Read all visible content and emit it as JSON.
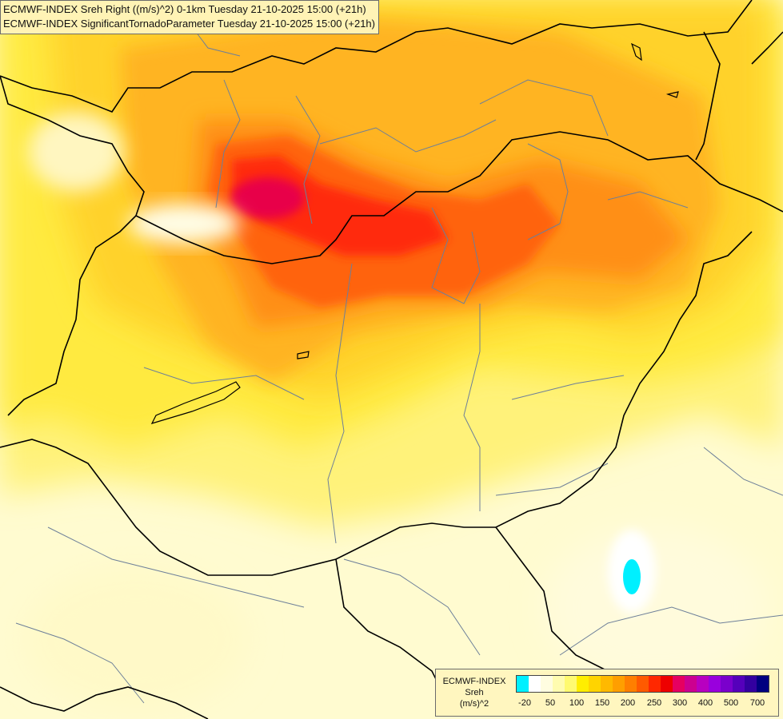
{
  "header": {
    "line1": "ECMWF-INDEX Sreh Right ((m/s)^2) 0-1km Tuesday 21-10-2025 15:00 (+21h)",
    "line2": "ECMWF-INDEX SignificantTornadoParameter Tuesday 21-10-2025 15:00 (+21h)"
  },
  "legend": {
    "line1": "ECMWF-INDEX",
    "line2": "Sreh",
    "line3": "(m/s)^2",
    "colors": [
      "#00f0ff",
      "#ffffff",
      "#fffde0",
      "#fffcb0",
      "#fffa70",
      "#ffee00",
      "#ffd400",
      "#ffb900",
      "#ff9f00",
      "#ff7f00",
      "#ff5a00",
      "#ff2800",
      "#ee0000",
      "#e60060",
      "#cc0090",
      "#b800c0",
      "#9900dd",
      "#7a00cc",
      "#5500bb",
      "#3300a0",
      "#000080"
    ],
    "ticks": [
      "-20",
      "50",
      "100",
      "150",
      "200",
      "250",
      "300",
      "400",
      "500",
      "700"
    ]
  }
}
